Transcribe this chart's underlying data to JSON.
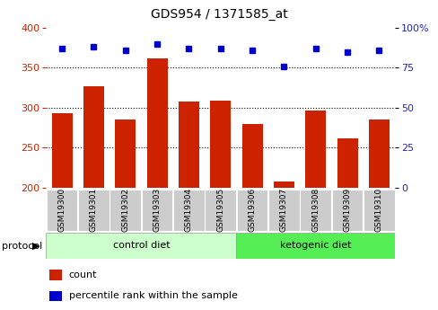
{
  "title": "GDS954 / 1371585_at",
  "samples": [
    "GSM19300",
    "GSM19301",
    "GSM19302",
    "GSM19303",
    "GSM19304",
    "GSM19305",
    "GSM19306",
    "GSM19307",
    "GSM19308",
    "GSM19309",
    "GSM19310"
  ],
  "bar_values": [
    293,
    327,
    285,
    362,
    308,
    309,
    280,
    208,
    296,
    262,
    285
  ],
  "percentile_values": [
    87,
    88,
    86,
    90,
    87,
    87,
    86,
    76,
    87,
    85,
    86
  ],
  "ylim_left": [
    200,
    400
  ],
  "ylim_right": [
    0,
    100
  ],
  "yticks_left": [
    200,
    250,
    300,
    350,
    400
  ],
  "yticks_right": [
    0,
    25,
    50,
    75,
    100
  ],
  "bar_color": "#cc2200",
  "dot_color": "#0000cc",
  "grid_color": "#000000",
  "control_diet_indices": [
    0,
    1,
    2,
    3,
    4,
    5
  ],
  "ketogenic_diet_indices": [
    6,
    7,
    8,
    9,
    10
  ],
  "control_label": "control diet",
  "ketogenic_label": "ketogenic diet",
  "protocol_label": "protocol",
  "legend_count": "count",
  "legend_percentile": "percentile rank within the sample",
  "bg_color": "#ffffff",
  "control_color": "#ccffcc",
  "ketogenic_color": "#55ee55",
  "tick_label_color_left": "#cc2200",
  "tick_label_color_right": "#2222cc",
  "sample_box_color": "#cccccc",
  "title_fontsize": 10,
  "tick_fontsize": 8,
  "label_fontsize": 8,
  "sample_fontsize": 6.5
}
